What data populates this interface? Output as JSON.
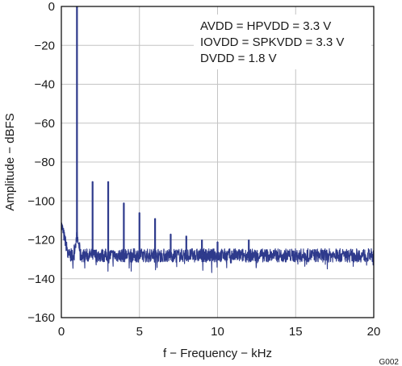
{
  "chart_data": {
    "type": "line",
    "title": "",
    "xlabel": "f − Frequency − kHz",
    "ylabel": "Amplitude − dBFS",
    "xlim": [
      0,
      20
    ],
    "ylim": [
      -160,
      0
    ],
    "x_ticks": [
      0,
      5,
      10,
      15,
      20
    ],
    "y_ticks": [
      0,
      -20,
      -40,
      -60,
      -80,
      -100,
      -120,
      -140,
      -160
    ],
    "x_tick_labels": [
      "0",
      "5",
      "10",
      "15",
      "20"
    ],
    "y_tick_labels": [
      "0",
      "−20",
      "−40",
      "−60",
      "−80",
      "−100",
      "−120",
      "−140",
      "−160"
    ],
    "grid": true,
    "line_color": "#2e3a8c",
    "noise_floor": -128,
    "series": [
      {
        "x": [
          0,
          0.08,
          0.2,
          0.4,
          0.6,
          0.8,
          0.95,
          1.0,
          1.05,
          1.2,
          1.5,
          2.0,
          3.0,
          4.0,
          5.0,
          6.0,
          7.0,
          8.0,
          9.0,
          10.0,
          12.0,
          20.0
        ],
        "y": [
          -112,
          -117,
          -124,
          -126,
          -125,
          -122,
          -117,
          0,
          -117,
          -124,
          -127,
          -90,
          -90,
          -101,
          -106,
          -109,
          -117,
          -118,
          -120,
          -121,
          -120,
          -128
        ]
      }
    ],
    "annotations": [
      "AVDD = HPVDD = 3.3 V",
      "IOVDD = SPKVDD = 3.3 V",
      "DVDD = 1.8 V"
    ],
    "figure_code": "G002"
  }
}
